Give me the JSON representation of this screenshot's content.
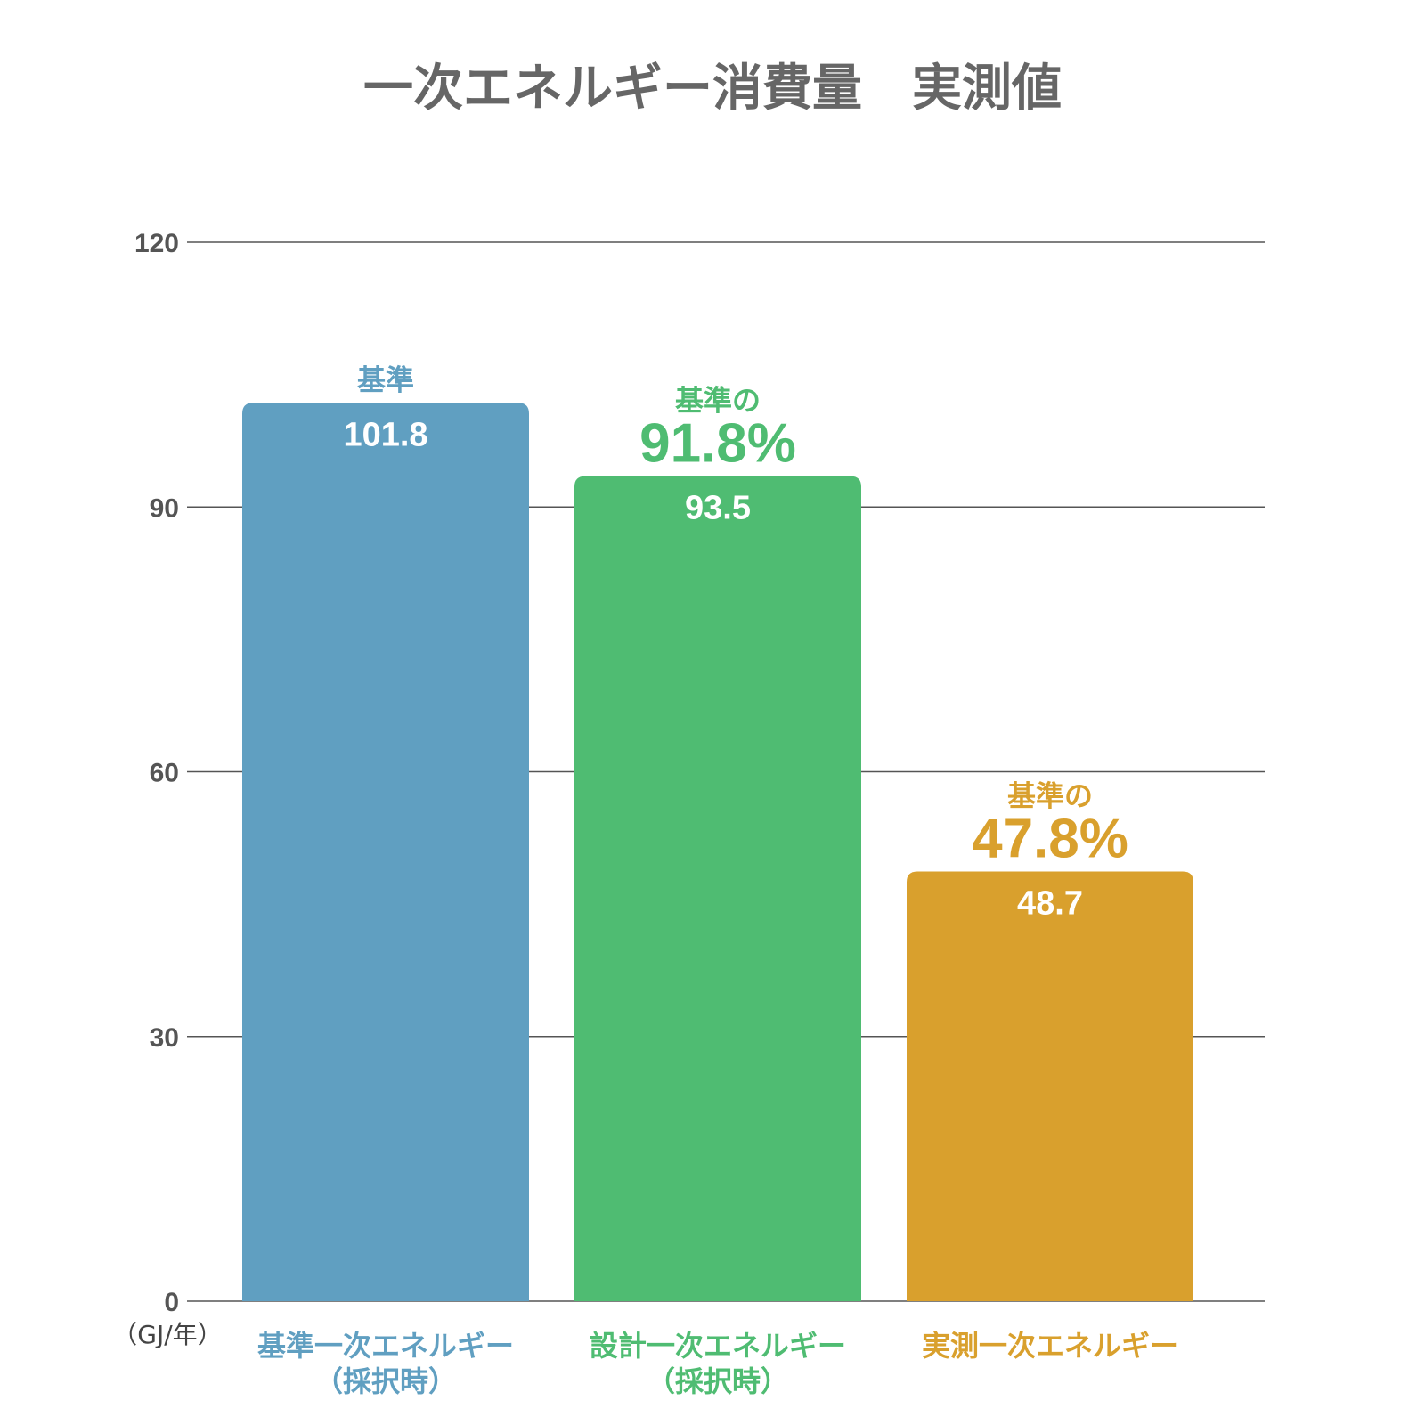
{
  "chart_data": {
    "type": "bar",
    "title": "一次エネルギー消費量　実測値",
    "unit": "（GJ/年）",
    "ylim": [
      0,
      120
    ],
    "yticks": [
      "0",
      "30",
      "60",
      "90",
      "120"
    ],
    "grid": true,
    "categories": [
      [
        "基準一次エネルギー",
        "（採択時）"
      ],
      [
        "設計一次エネルギー",
        "（採択時）"
      ],
      [
        "実測一次エネルギー"
      ]
    ],
    "values": [
      101.8,
      93.5,
      48.7
    ],
    "value_labels": [
      "101.8",
      "93.5",
      "48.7"
    ],
    "notes": [
      {
        "small": "基準",
        "big": ""
      },
      {
        "small": "基準の",
        "big": "91.8%"
      },
      {
        "small": "基準の",
        "big": "47.8%"
      }
    ],
    "colors": [
      "#609fc1",
      "#4fbc72",
      "#d9a02d"
    ]
  }
}
